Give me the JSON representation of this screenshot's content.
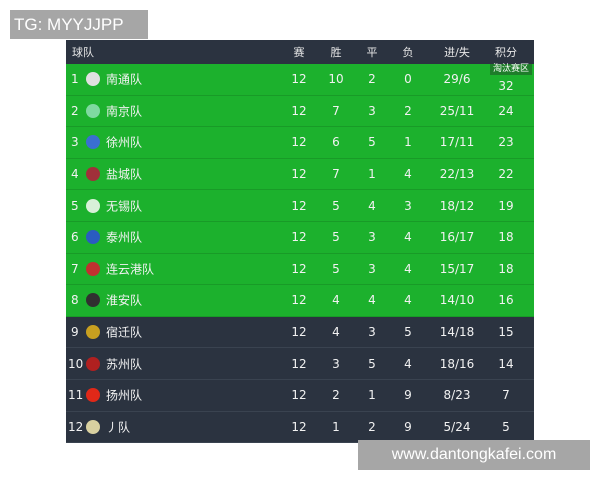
{
  "overlay": {
    "tg": "TG: MYYJJPP",
    "watermark": "www.dantongkafei.com"
  },
  "header": {
    "team": "球队",
    "played": "赛",
    "won": "胜",
    "drawn": "平",
    "lost": "负",
    "goals": "进/失",
    "points": "积分"
  },
  "zone_label": "淘汰赛区",
  "colors": {
    "qualified": "#1cb12d",
    "other": "#2b3340"
  },
  "rows": [
    {
      "rank": "1",
      "team": "南通队",
      "p": "12",
      "w": "10",
      "d": "2",
      "l": "0",
      "g": "29/6",
      "pts": "32",
      "badge": "#e0e0e0",
      "q": true
    },
    {
      "rank": "2",
      "team": "南京队",
      "p": "12",
      "w": "7",
      "d": "3",
      "l": "2",
      "g": "25/11",
      "pts": "24",
      "badge": "#7fd9a0",
      "q": true
    },
    {
      "rank": "3",
      "team": "徐州队",
      "p": "12",
      "w": "6",
      "d": "5",
      "l": "1",
      "g": "17/11",
      "pts": "23",
      "badge": "#3a6fd0",
      "q": true
    },
    {
      "rank": "4",
      "team": "盐城队",
      "p": "12",
      "w": "7",
      "d": "1",
      "l": "4",
      "g": "22/13",
      "pts": "22",
      "badge": "#a0303a",
      "q": true
    },
    {
      "rank": "5",
      "team": "无锡队",
      "p": "12",
      "w": "5",
      "d": "4",
      "l": "3",
      "g": "18/12",
      "pts": "19",
      "badge": "#d8f0d8",
      "q": true
    },
    {
      "rank": "6",
      "team": "泰州队",
      "p": "12",
      "w": "5",
      "d": "3",
      "l": "4",
      "g": "16/17",
      "pts": "18",
      "badge": "#2a5cc0",
      "q": true
    },
    {
      "rank": "7",
      "team": "连云港队",
      "p": "12",
      "w": "5",
      "d": "3",
      "l": "4",
      "g": "15/17",
      "pts": "18",
      "badge": "#c03030",
      "q": true
    },
    {
      "rank": "8",
      "team": "淮安队",
      "p": "12",
      "w": "4",
      "d": "4",
      "l": "4",
      "g": "14/10",
      "pts": "16",
      "badge": "#303030",
      "q": true
    },
    {
      "rank": "9",
      "team": "宿迁队",
      "p": "12",
      "w": "4",
      "d": "3",
      "l": "5",
      "g": "14/18",
      "pts": "15",
      "badge": "#c8a020",
      "q": false
    },
    {
      "rank": "10",
      "team": "苏州队",
      "p": "12",
      "w": "3",
      "d": "5",
      "l": "4",
      "g": "18/16",
      "pts": "14",
      "badge": "#b02020",
      "q": false
    },
    {
      "rank": "11",
      "team": "扬州队",
      "p": "12",
      "w": "2",
      "d": "1",
      "l": "9",
      "g": "8/23",
      "pts": "7",
      "badge": "#e02818",
      "q": false
    },
    {
      "rank": "12",
      "team": "丿队",
      "p": "12",
      "w": "1",
      "d": "2",
      "l": "9",
      "g": "5/24",
      "pts": "5",
      "badge": "#d8d0a0",
      "q": false
    }
  ]
}
